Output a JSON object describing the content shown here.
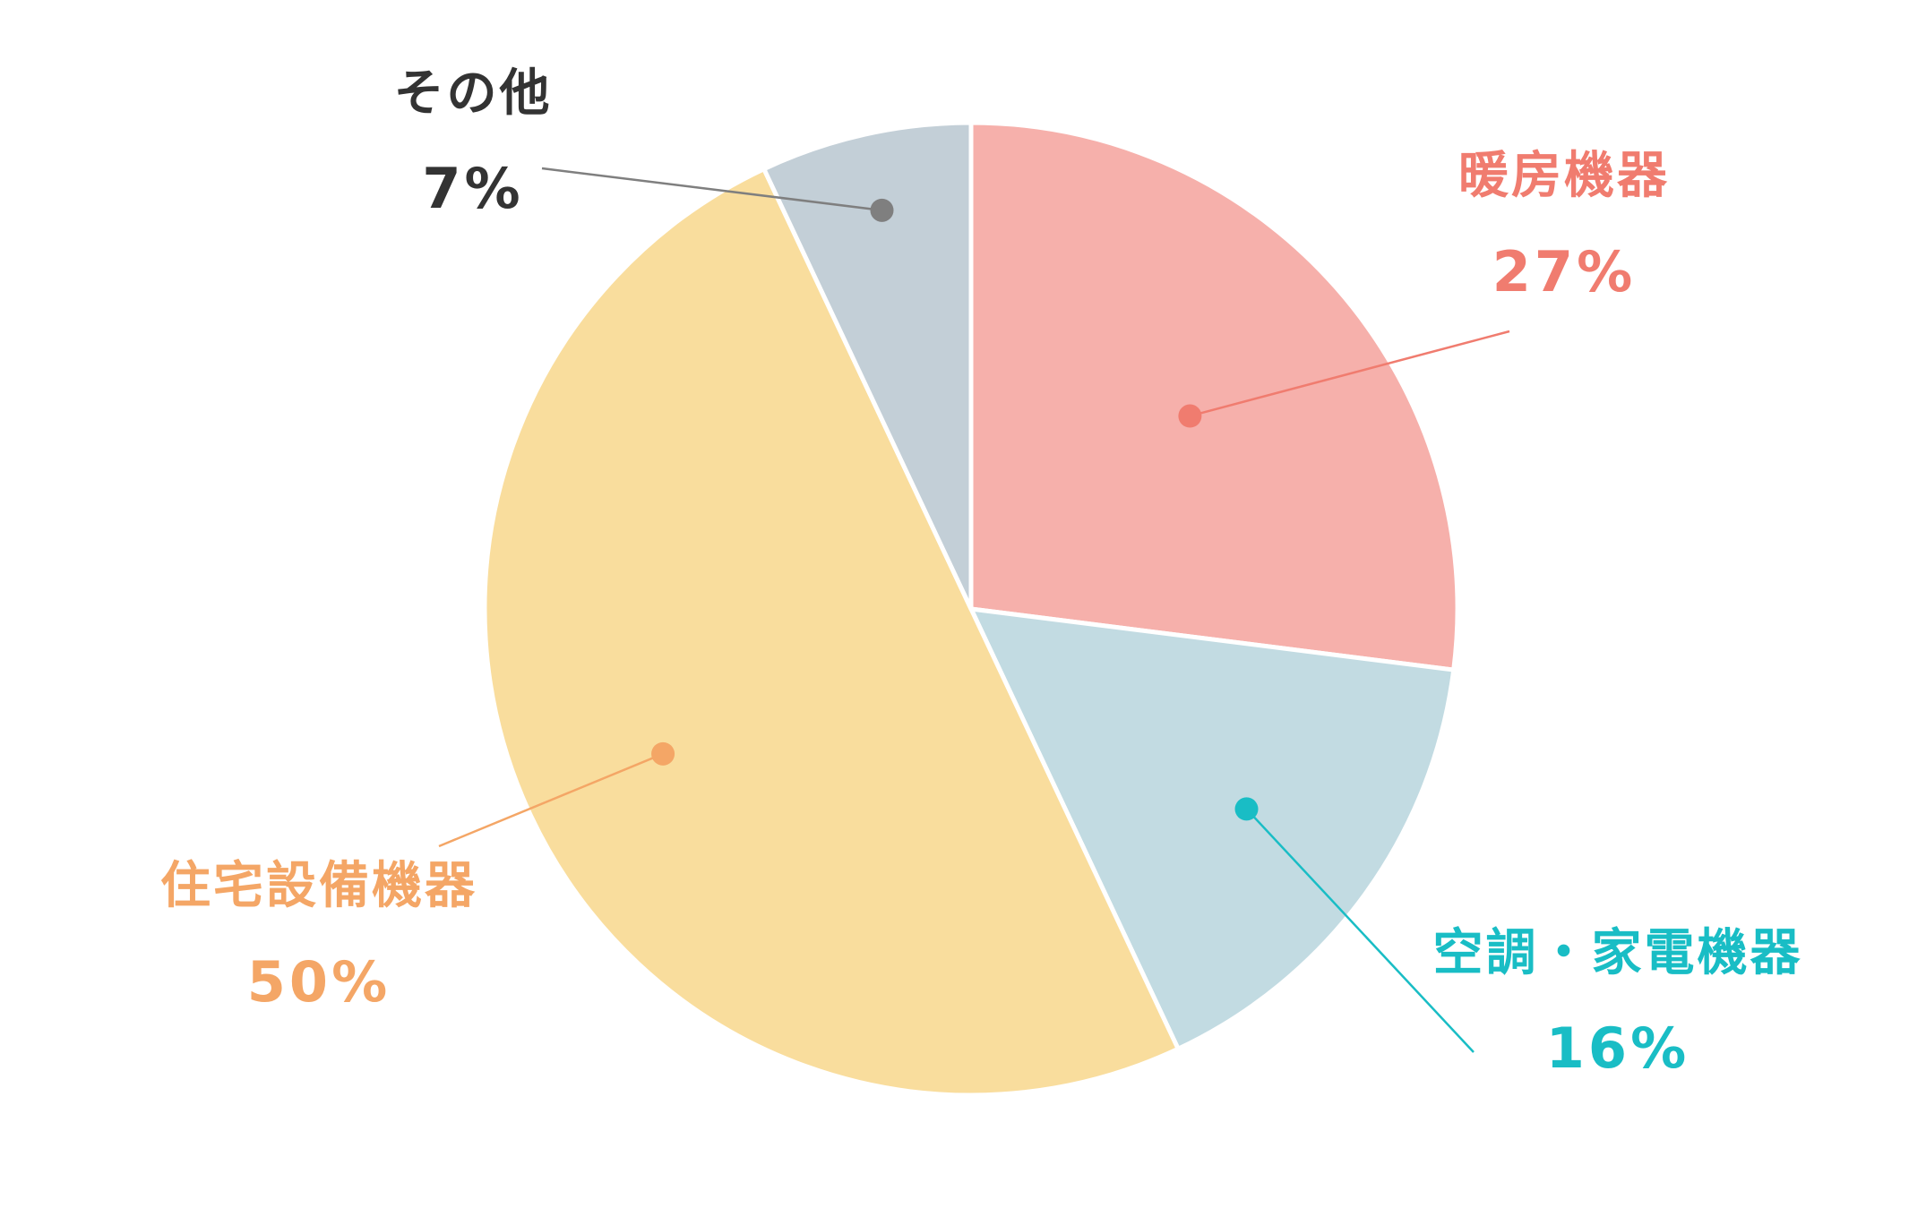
{
  "chart_data": {
    "type": "pie",
    "start_angle_deg": 0,
    "direction": "clockwise",
    "slices": [
      {
        "name": "暖房機器",
        "value": 27,
        "percent_label": "27%",
        "color": "#F6B0AB",
        "label_color": "#F07C6F",
        "dot_color": "#F07C6F"
      },
      {
        "name": "空調・家電機器",
        "value": 16,
        "percent_label": "16%",
        "color": "#C2DBE2",
        "label_color": "#19BDC5",
        "dot_color": "#19BDC5"
      },
      {
        "name": "住宅設備機器",
        "value": 50,
        "percent_label": "50%",
        "color": "#F9DD9D",
        "label_color": "#F4A666",
        "dot_color": "#F4A666"
      },
      {
        "name": "その他",
        "value": 7,
        "percent_label": "7%",
        "color": "#C3CFD7",
        "label_color": "#333333",
        "dot_color": "#7F7F7F"
      }
    ]
  }
}
